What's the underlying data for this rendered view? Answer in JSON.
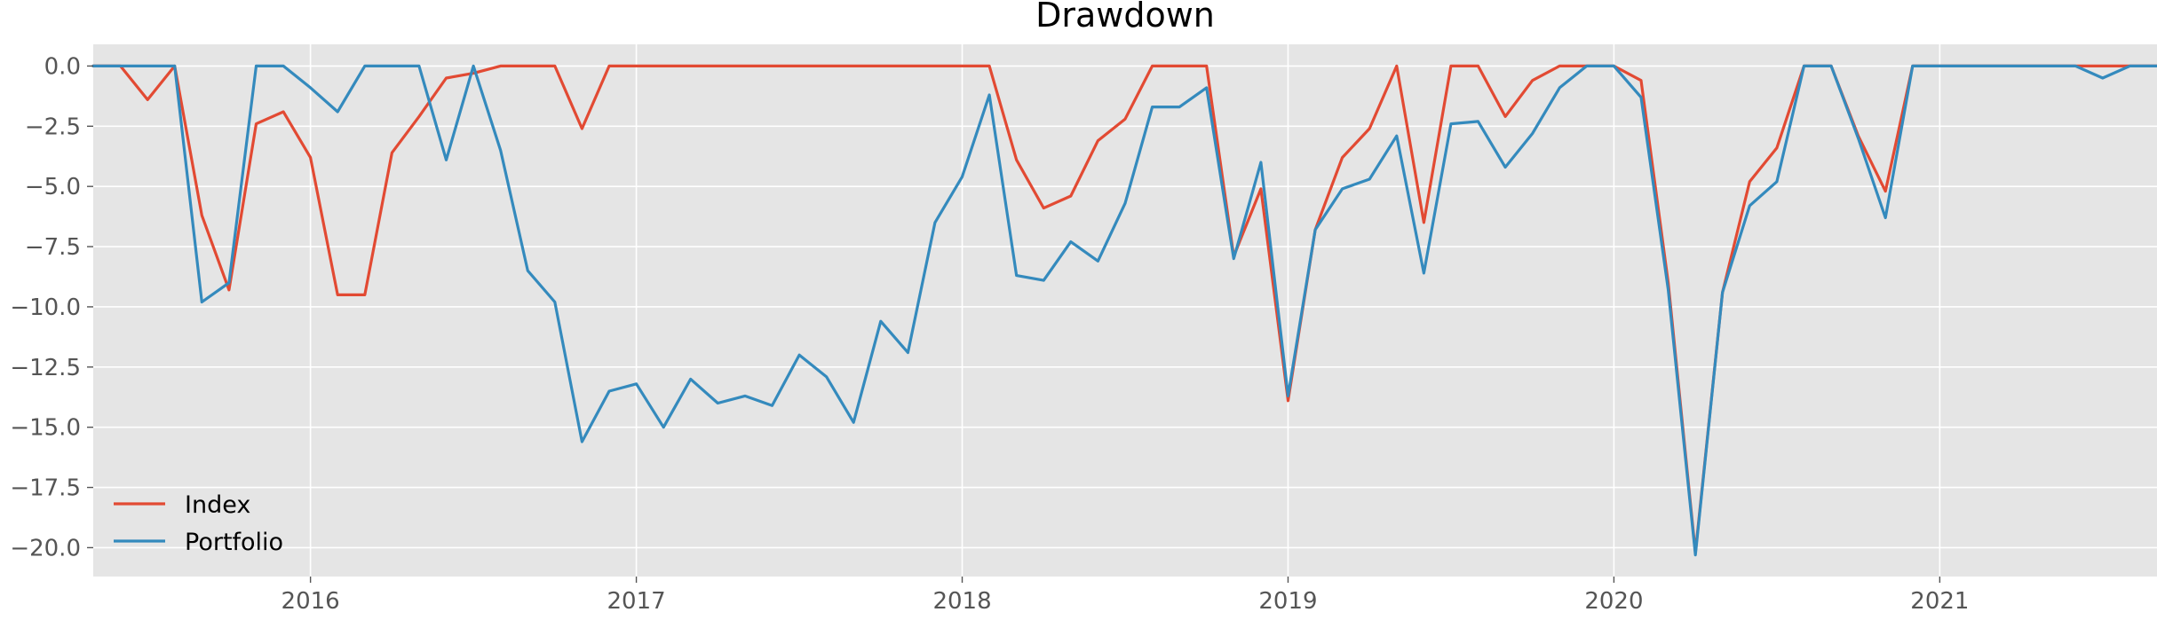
{
  "chart_data": {
    "type": "line",
    "title": "Drawdown",
    "xlabel": "",
    "ylabel": "",
    "x": [
      "2015-05",
      "2015-06",
      "2015-07",
      "2015-08",
      "2015-09",
      "2015-10",
      "2015-11",
      "2015-12",
      "2016-01",
      "2016-02",
      "2016-03",
      "2016-04",
      "2016-05",
      "2016-06",
      "2016-07",
      "2016-08",
      "2016-09",
      "2016-10",
      "2016-11",
      "2016-12",
      "2017-01",
      "2017-02",
      "2017-03",
      "2017-04",
      "2017-05",
      "2017-06",
      "2017-07",
      "2017-08",
      "2017-09",
      "2017-10",
      "2017-11",
      "2017-12",
      "2018-01",
      "2018-02",
      "2018-03",
      "2018-04",
      "2018-05",
      "2018-06",
      "2018-07",
      "2018-08",
      "2018-09",
      "2018-10",
      "2018-11",
      "2018-12",
      "2019-01",
      "2019-02",
      "2019-03",
      "2019-04",
      "2019-05",
      "2019-06",
      "2019-07",
      "2019-08",
      "2019-09",
      "2019-10",
      "2019-11",
      "2019-12",
      "2020-01",
      "2020-02",
      "2020-03",
      "2020-04",
      "2020-05",
      "2020-06",
      "2020-07",
      "2020-08",
      "2020-09",
      "2020-10",
      "2020-11",
      "2020-12",
      "2021-01",
      "2021-02",
      "2021-03",
      "2021-04",
      "2021-05",
      "2021-06",
      "2021-07",
      "2021-08",
      "2021-09"
    ],
    "series": [
      {
        "name": "Index",
        "color": "#e24a33",
        "values": [
          0,
          0,
          -1.4,
          0,
          -6.2,
          -9.3,
          -2.4,
          -1.9,
          -3.8,
          -9.5,
          -9.5,
          -3.6,
          -2.1,
          -0.5,
          -0.3,
          0,
          0,
          0,
          -2.6,
          0,
          0,
          0,
          0,
          0,
          0,
          0,
          0,
          0,
          0,
          0,
          0,
          0,
          0,
          0,
          -3.9,
          -5.9,
          -5.4,
          -3.1,
          -2.2,
          0,
          0,
          0,
          -7.9,
          -5.1,
          -13.9,
          -6.8,
          -3.8,
          -2.6,
          0,
          -6.5,
          0,
          0,
          -2.1,
          -0.6,
          0,
          0,
          0,
          -0.6,
          -9.0,
          -20.2,
          -9.4,
          -4.8,
          -3.4,
          0,
          0,
          -2.9,
          -5.2,
          0,
          0,
          0,
          0,
          0,
          0,
          0,
          0,
          0,
          0
        ]
      },
      {
        "name": "Portfolio",
        "color": "#348abd",
        "values": [
          0,
          0,
          0,
          0,
          -9.8,
          -9.0,
          0,
          0,
          -0.9,
          -1.9,
          0,
          0,
          0,
          -3.9,
          0,
          -3.5,
          -8.5,
          -9.8,
          -15.6,
          -13.5,
          -13.2,
          -15.0,
          -13.0,
          -14.0,
          -13.7,
          -14.1,
          -12.0,
          -12.9,
          -14.8,
          -10.6,
          -11.9,
          -6.5,
          -4.6,
          -1.2,
          -8.7,
          -8.9,
          -7.3,
          -8.1,
          -5.7,
          -1.7,
          -1.7,
          -0.9,
          -8.0,
          -4.0,
          -13.7,
          -6.8,
          -5.1,
          -4.7,
          -2.9,
          -8.6,
          -2.4,
          -2.3,
          -4.2,
          -2.8,
          -0.9,
          0,
          0,
          -1.3,
          -9.3,
          -20.3,
          -9.4,
          -5.8,
          -4.8,
          0,
          0,
          -3.0,
          -6.3,
          0,
          0,
          0,
          0,
          0,
          0,
          0,
          -0.5,
          0,
          0
        ]
      }
    ],
    "x_ticks": [
      "2016-01",
      "2017-01",
      "2018-01",
      "2019-01",
      "2020-01",
      "2021-01"
    ],
    "x_tick_labels": [
      "2016",
      "2017",
      "2018",
      "2019",
      "2020",
      "2021"
    ],
    "y_ticks": [
      0,
      -2.5,
      -5,
      -7.5,
      -10,
      -12.5,
      -15,
      -17.5,
      -20
    ],
    "y_tick_labels": [
      "0.0",
      "−2.5",
      "−5.0",
      "−7.5",
      "−10.0",
      "−12.5",
      "−15.0",
      "−17.5",
      "−20.0"
    ],
    "xlim": [
      "2015-05",
      "2021-09"
    ],
    "ylim": [
      -21.2,
      0.9
    ],
    "grid": true,
    "legend": "lower-left",
    "background_color": "#e5e5e5",
    "grid_color": "#ffffff"
  }
}
